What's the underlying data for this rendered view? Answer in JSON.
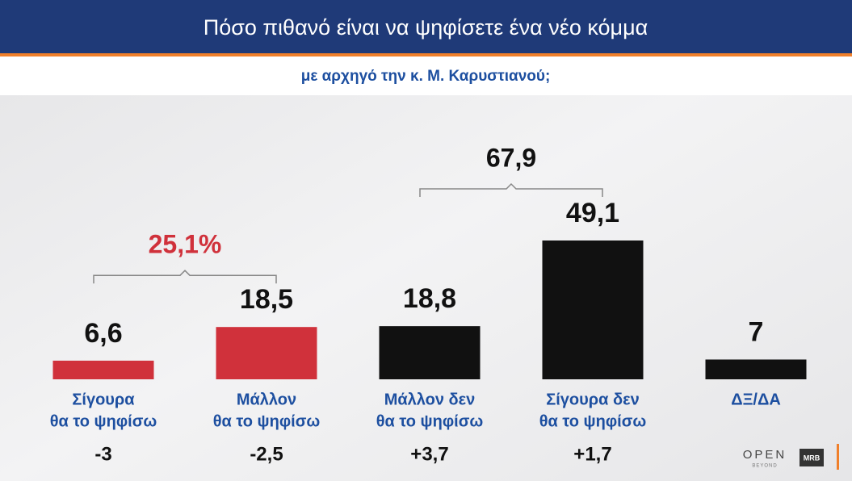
{
  "chart_data": {
    "type": "bar",
    "title": "Πόσο πιθανό είναι να ψηφίσετε ένα νέο κόμμα",
    "subtitle": "με αρχηγό την κ. Μ. Καρυστιανού;",
    "categories": [
      [
        "Σίγουρα",
        "θα το ψηφίσω"
      ],
      [
        "Μάλλον",
        "θα το ψηφίσω"
      ],
      [
        "Μάλλον δεν",
        "θα το ψηφίσω"
      ],
      [
        "Σίγουρα δεν",
        "θα το ψηφίσω"
      ],
      [
        "ΔΞ/ΔΑ"
      ]
    ],
    "values": [
      6.6,
      18.5,
      18.8,
      49.1,
      7
    ],
    "value_labels": [
      "6,6",
      "18,5",
      "18,8",
      "49,1",
      "7"
    ],
    "colors": [
      "#d0313b",
      "#d0313b",
      "#111111",
      "#111111",
      "#111111"
    ],
    "changes": [
      -3,
      -2.5,
      3.7,
      1.7,
      null
    ],
    "change_labels": [
      "-3",
      "-2,5",
      "+3,7",
      "+1,7",
      null
    ],
    "groups": [
      {
        "value": 25.1,
        "label": "25,1%",
        "from": 0,
        "to": 1,
        "color": "#d0313b"
      },
      {
        "value": 67.9,
        "label": "67,9",
        "from": 2,
        "to": 3,
        "color": "#111111"
      }
    ],
    "logos": [
      "OPEN",
      "BEYOND",
      "MRB"
    ]
  }
}
